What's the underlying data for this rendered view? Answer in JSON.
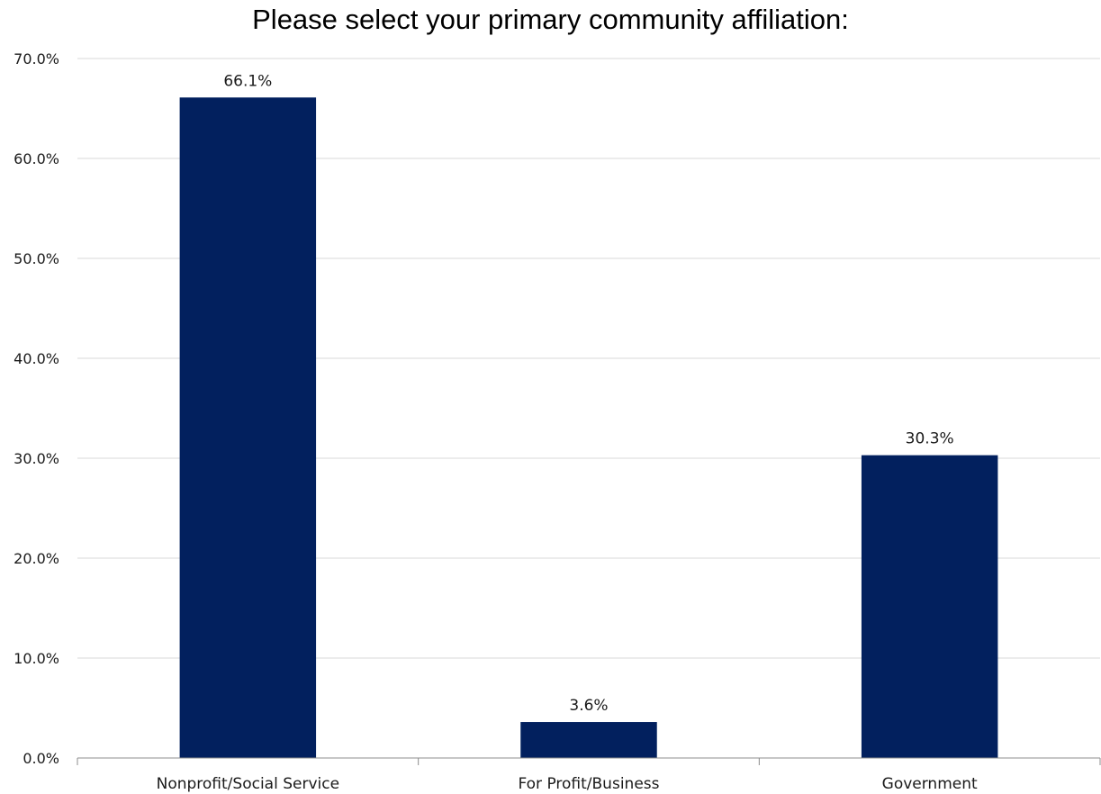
{
  "chart_data": {
    "type": "bar",
    "title": "Please select your primary community affiliation:",
    "xlabel": "",
    "ylabel": "",
    "categories": [
      "Nonprofit/Social Service",
      "For Profit/Business",
      "Government"
    ],
    "values": [
      66.1,
      3.6,
      30.3
    ],
    "data_labels": [
      "66.1%",
      "3.6%",
      "30.3%"
    ],
    "ylim": [
      0,
      70
    ],
    "y_ticks": [
      0,
      10,
      20,
      30,
      40,
      50,
      60,
      70
    ],
    "y_tick_labels": [
      "0.0%",
      "10.0%",
      "20.0%",
      "30.0%",
      "40.0%",
      "50.0%",
      "60.0%",
      "70.0%"
    ],
    "grid": true,
    "legend": "none",
    "bar_color": "#02205e",
    "grid_color": "#d9d9d9",
    "axis_color": "#8c8c8c"
  }
}
